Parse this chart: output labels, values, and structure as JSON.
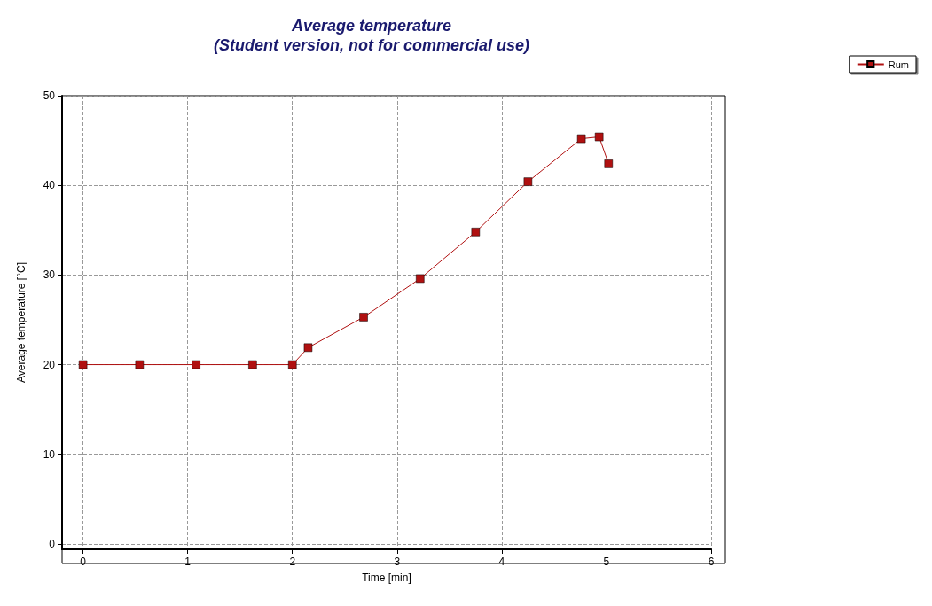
{
  "chart_data": {
    "type": "line",
    "title": "Average temperature\n(Student version, not for commercial use)",
    "xlabel": "Time [min]",
    "ylabel": "Average temperature [°C]",
    "series": [
      {
        "name": "Rum",
        "color": "#b01010",
        "x": [
          0,
          0.54,
          1.08,
          1.62,
          2,
          2.15,
          2.68,
          3.22,
          3.75,
          4.25,
          4.76,
          4.93,
          5.02
        ],
        "values": [
          20,
          20,
          20,
          20,
          20,
          21.9,
          25.3,
          29.6,
          34.8,
          40.4,
          45.2,
          45.4,
          42.4
        ]
      }
    ],
    "xlim": [
      -0.2,
      6
    ],
    "xticks": [
      0,
      1,
      2,
      3,
      4,
      5,
      6
    ],
    "ylim": [
      -0.6,
      50
    ],
    "yticks": [
      0,
      10,
      20,
      30,
      40,
      50
    ],
    "grid": true,
    "legend": "top right",
    "marker": "square",
    "line_style": "solid"
  }
}
